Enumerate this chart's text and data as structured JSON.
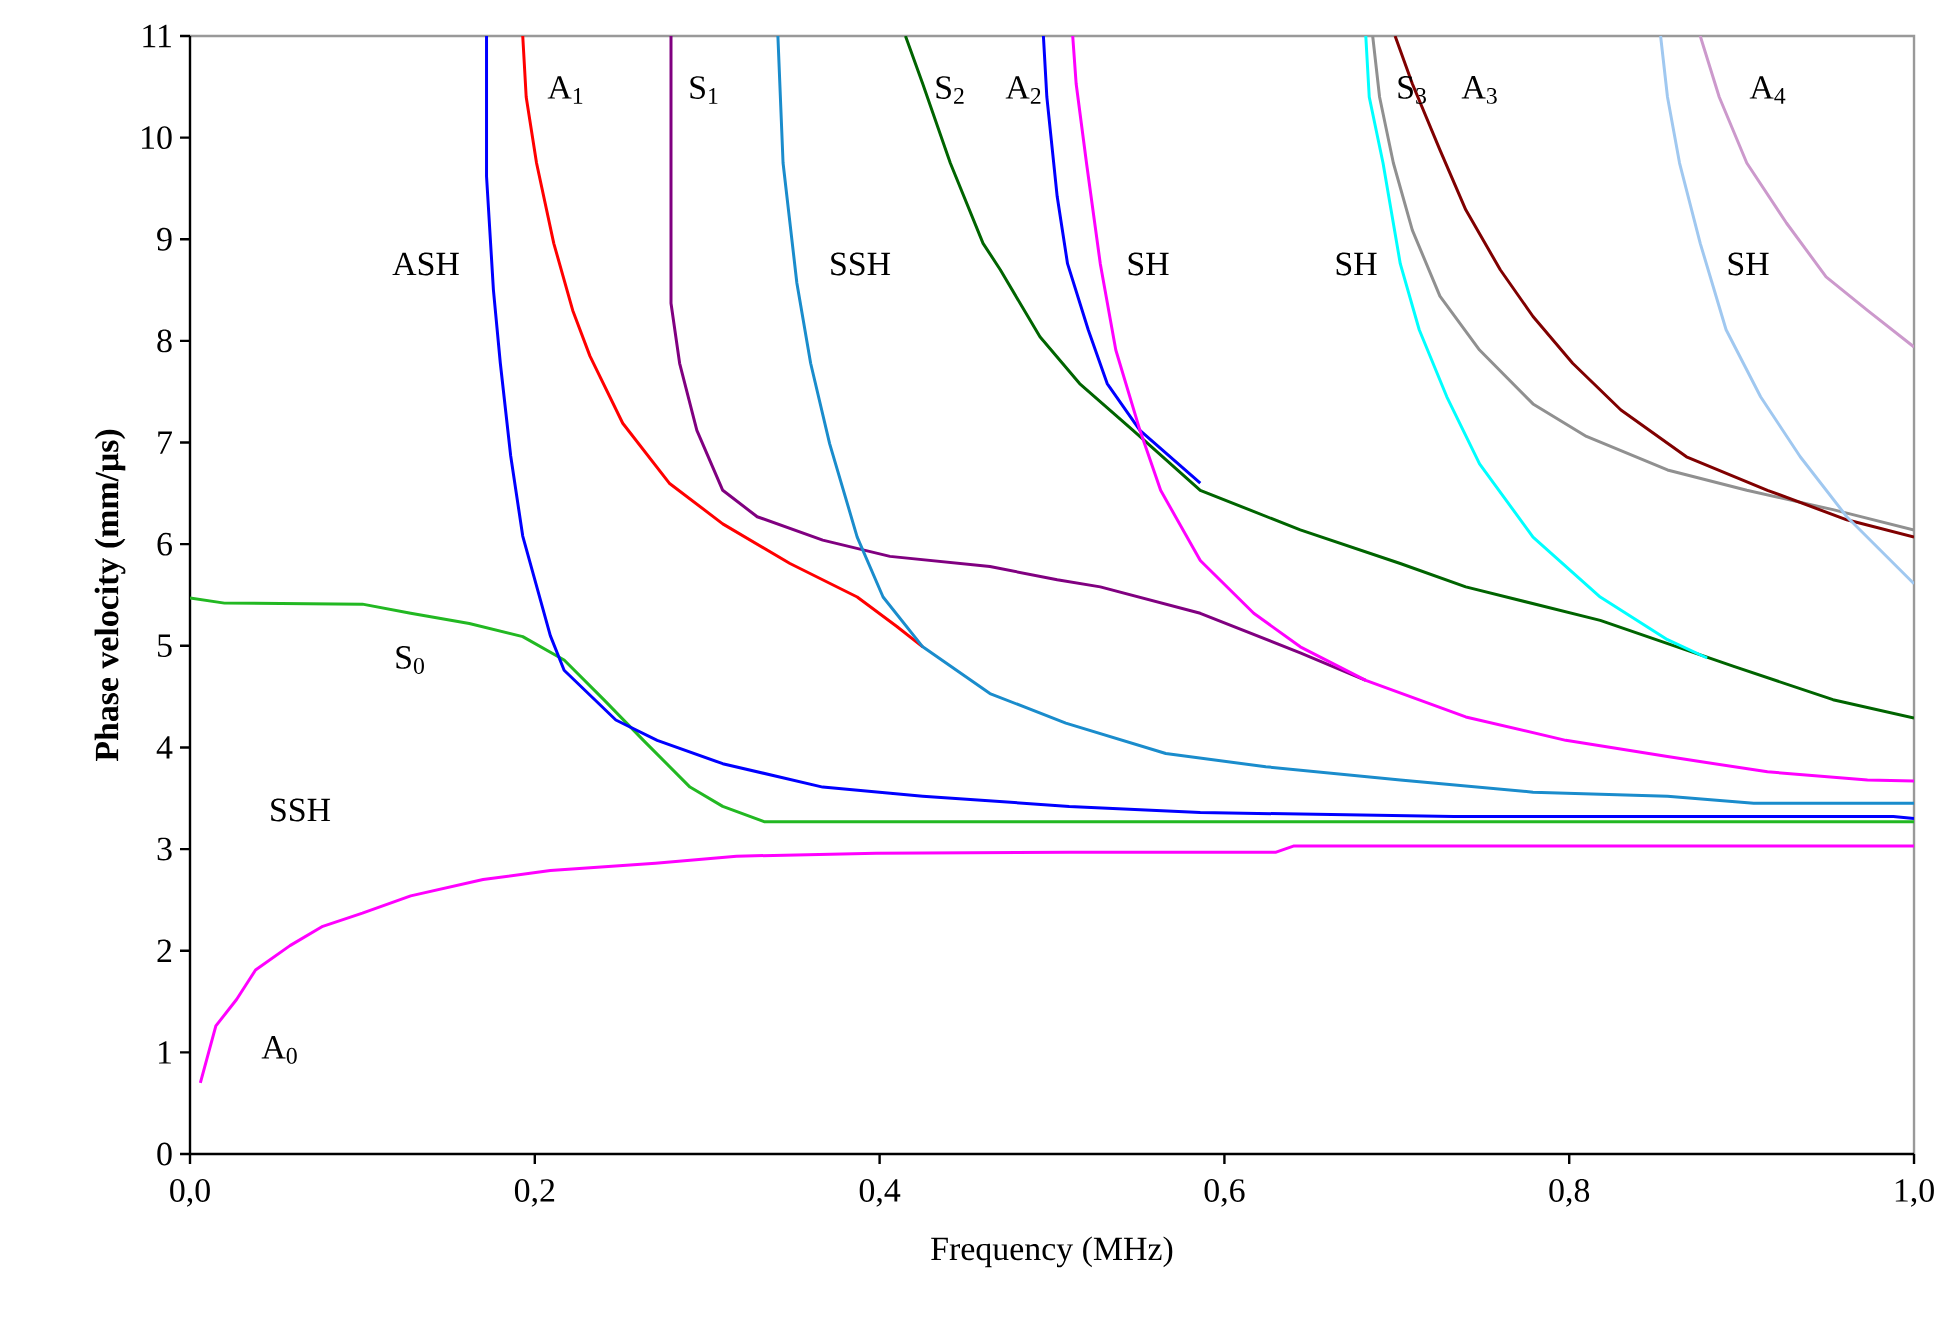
{
  "chart_data": {
    "type": "line",
    "xlabel": "Frequency (MHz)",
    "ylabel": "Phase velocity  (mm/μs)",
    "xlim": [
      0,
      1
    ],
    "ylim": [
      0,
      11
    ],
    "xticks": [
      {
        "value": 0,
        "label": "0,0"
      },
      {
        "value": 0.2,
        "label": "0,2"
      },
      {
        "value": 0.4,
        "label": "0,4"
      },
      {
        "value": 0.6,
        "label": "0,6"
      },
      {
        "value": 0.8,
        "label": "0,8"
      },
      {
        "value": 1,
        "label": "1,0"
      }
    ],
    "yticks": [
      0,
      1,
      2,
      3,
      4,
      5,
      6,
      7,
      8,
      9,
      10,
      11
    ],
    "grid": false,
    "marker": "none",
    "line_style": "solid",
    "series": [
      {
        "color": "#ff00ff",
        "x": [
          0.006,
          0.015,
          0.027,
          0.038,
          0.058,
          0.077,
          0.1,
          0.128,
          0.17,
          0.209,
          0.27,
          0.317,
          0.398,
          0.51,
          0.63,
          0.64,
          1.0
        ],
        "values": [
          0.7,
          1.26,
          1.52,
          1.81,
          2.05,
          2.24,
          2.37,
          2.54,
          2.7,
          2.79,
          2.86,
          2.93,
          2.96,
          2.97,
          2.97,
          3.03,
          3.03
        ]
      },
      {
        "color": "#22b822",
        "x": [
          0,
          0.02,
          0.1,
          0.128,
          0.162,
          0.193,
          0.217,
          0.24,
          0.263,
          0.29,
          0.309,
          0.333,
          1.0
        ],
        "values": [
          5.47,
          5.42,
          5.41,
          5.32,
          5.22,
          5.09,
          4.86,
          4.47,
          4.07,
          3.61,
          3.42,
          3.27,
          3.27
        ]
      },
      {
        "color": "#0000ff",
        "x": [
          0.172,
          0.172,
          0.176,
          0.18,
          0.186,
          0.193,
          0.209,
          0.217,
          0.247,
          0.271,
          0.309,
          0.367,
          0.425,
          0.51,
          0.586,
          0.733,
          0.988,
          1.0
        ],
        "values": [
          11,
          9.62,
          8.5,
          7.78,
          6.87,
          6.08,
          5.1,
          4.76,
          4.27,
          4.07,
          3.84,
          3.61,
          3.52,
          3.42,
          3.36,
          3.32,
          3.32,
          3.3
        ]
      },
      {
        "color": "#ff0000",
        "x": [
          0.193,
          0.195,
          0.201,
          0.211,
          0.222,
          0.232,
          0.251,
          0.278,
          0.309,
          0.348,
          0.387,
          0.41,
          0.425
        ],
        "values": [
          11,
          10.4,
          9.75,
          8.96,
          8.3,
          7.85,
          7.19,
          6.6,
          6.2,
          5.81,
          5.48,
          5.19,
          4.99
        ]
      },
      {
        "color": "#800080",
        "x": [
          0.279,
          0.279,
          0.284,
          0.294,
          0.309,
          0.329,
          0.367,
          0.406,
          0.464,
          0.503,
          0.528,
          0.586,
          0.644,
          0.682
        ],
        "values": [
          11,
          8.37,
          7.78,
          7.12,
          6.53,
          6.27,
          6.04,
          5.88,
          5.78,
          5.65,
          5.58,
          5.32,
          4.93,
          4.66
        ]
      },
      {
        "color": "#1a8ccc",
        "x": [
          0.341,
          0.344,
          0.352,
          0.36,
          0.371,
          0.387,
          0.402,
          0.425,
          0.464,
          0.508,
          0.566,
          0.624,
          0.702,
          0.779,
          0.857,
          0.907,
          1.0
        ],
        "values": [
          11,
          9.75,
          8.57,
          7.78,
          6.99,
          6.07,
          5.48,
          4.99,
          4.53,
          4.24,
          3.94,
          3.81,
          3.68,
          3.56,
          3.52,
          3.45,
          3.45
        ]
      },
      {
        "color": "#0000ff",
        "x": [
          0.495,
          0.497,
          0.503,
          0.509,
          0.521,
          0.532,
          0.551,
          0.586
        ],
        "values": [
          11,
          10.4,
          9.42,
          8.76,
          8.11,
          7.58,
          7.12,
          6.6
        ]
      },
      {
        "color": "#006400",
        "x": [
          0.415,
          0.425,
          0.441,
          0.46,
          0.47,
          0.493,
          0.516,
          0.547,
          0.586,
          0.644,
          0.702,
          0.74,
          0.818,
          0.895,
          0.953,
          1.0
        ],
        "values": [
          11,
          10.53,
          9.75,
          8.96,
          8.7,
          8.04,
          7.58,
          7.12,
          6.53,
          6.14,
          5.81,
          5.58,
          5.25,
          4.8,
          4.47,
          4.29
        ]
      },
      {
        "color": "#ff00ff",
        "x": [
          0.512,
          0.514,
          0.52,
          0.528,
          0.537,
          0.551,
          0.563,
          0.586,
          0.617,
          0.644,
          0.682,
          0.74,
          0.798,
          0.857,
          0.915,
          0.973,
          1.0
        ],
        "values": [
          11,
          10.53,
          9.75,
          8.76,
          7.91,
          7.12,
          6.53,
          5.84,
          5.32,
          4.99,
          4.66,
          4.3,
          4.07,
          3.91,
          3.76,
          3.68,
          3.67
        ]
      },
      {
        "color": "#00ffff",
        "x": [
          0.682,
          0.684,
          0.692,
          0.702,
          0.713,
          0.729,
          0.748,
          0.779,
          0.818,
          0.857,
          0.88
        ],
        "values": [
          11,
          10.4,
          9.75,
          8.76,
          8.11,
          7.45,
          6.79,
          6.07,
          5.48,
          5.06,
          4.88
        ]
      },
      {
        "color": "#909090",
        "x": [
          0.686,
          0.69,
          0.698,
          0.709,
          0.725,
          0.748,
          0.779,
          0.81,
          0.857,
          0.903,
          0.953,
          1.0
        ],
        "values": [
          11,
          10.4,
          9.75,
          9.09,
          8.44,
          7.91,
          7.38,
          7.06,
          6.73,
          6.53,
          6.34,
          6.14
        ]
      },
      {
        "color": "#800000",
        "x": [
          0.699,
          0.709,
          0.725,
          0.74,
          0.76,
          0.779,
          0.802,
          0.83,
          0.868,
          0.915,
          0.961,
          1.0
        ],
        "values": [
          11,
          10.53,
          9.88,
          9.29,
          8.7,
          8.24,
          7.78,
          7.32,
          6.86,
          6.53,
          6.24,
          6.07
        ]
      },
      {
        "color": "#a0c8f0",
        "x": [
          0.853,
          0.857,
          0.864,
          0.876,
          0.891,
          0.911,
          0.934,
          0.961,
          1.0
        ],
        "values": [
          11,
          10.4,
          9.75,
          8.96,
          8.11,
          7.45,
          6.86,
          6.27,
          5.61
        ]
      },
      {
        "color": "#cc99cc",
        "x": [
          0.876,
          0.887,
          0.903,
          0.926,
          0.949,
          0.973,
          1.0
        ],
        "values": [
          11,
          10.4,
          9.75,
          9.16,
          8.63,
          8.3,
          7.94
        ]
      }
    ],
    "annotations": [
      "A$_{1}$",
      "S$_{1}$",
      "S$_{2}$",
      "A$_{2}$",
      "S$_{3}$",
      "A$_{3}$",
      "A$_{4}$",
      "ASH",
      "SSH",
      "SH",
      "SH",
      "SH",
      "S$_{0}$",
      "SSH",
      "A$_{0}$"
    ]
  }
}
